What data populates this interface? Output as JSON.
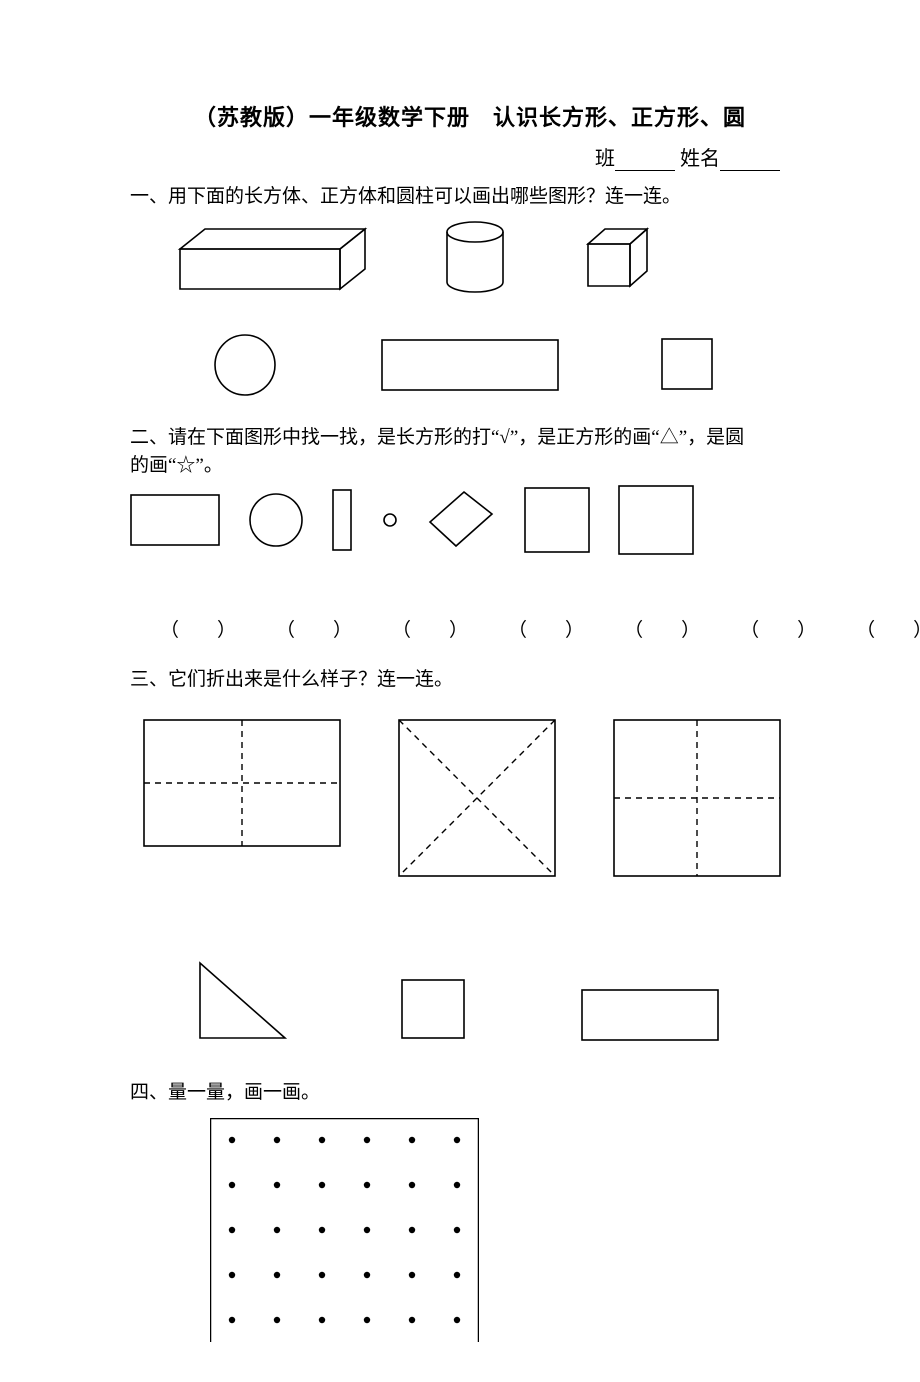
{
  "title": "（苏教版）一年级数学下册　认识长方形、正方形、圆",
  "header": {
    "class_label": "班",
    "name_label": "姓名"
  },
  "q1": {
    "text": "一、用下面的长方体、正方体和圆柱可以画出哪些图形？连一连。"
  },
  "q2": {
    "text_a": "二、请在下面图形中找一找，是长方形的打“√”，是正方形的画“△”，是圆",
    "text_b": "的画“☆”。",
    "paren_left": "（",
    "paren_right": "）",
    "answer_count": 7
  },
  "q3": {
    "text": "三、它们折出来是什么样子？连一连。"
  },
  "q4": {
    "text": "四、量一量，画一画。"
  },
  "style": {
    "stroke": "#000000",
    "stroke_width": 1.6,
    "stroke_thick": 2.2,
    "dash": "6,5",
    "font_main": 19,
    "font_title": 22,
    "dot_grid": {
      "rows": 5,
      "cols": 6,
      "r": 3.2,
      "gap": 45,
      "pad": 22,
      "border": 2.5
    }
  }
}
